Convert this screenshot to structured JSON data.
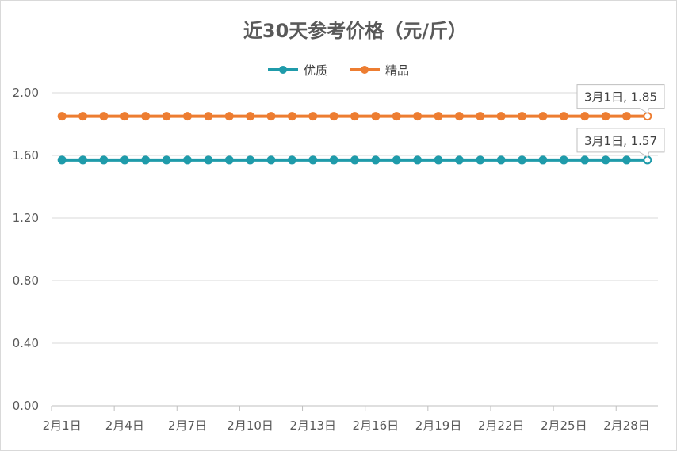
{
  "chart_data": {
    "type": "line",
    "title": "近30天参考价格（元/斤）",
    "xlabel": "",
    "ylabel": "",
    "ylim": [
      0,
      2
    ],
    "yticks": [
      "0.00",
      "0.40",
      "0.80",
      "1.20",
      "1.60",
      "2.00"
    ],
    "grid": true,
    "legend_position": "top",
    "categories": [
      "2月1日",
      "2月2日",
      "2月3日",
      "2月4日",
      "2月5日",
      "2月6日",
      "2月7日",
      "2月8日",
      "2月9日",
      "2月10日",
      "2月11日",
      "2月12日",
      "2月13日",
      "2月14日",
      "2月15日",
      "2月16日",
      "2月17日",
      "2月18日",
      "2月19日",
      "2月20日",
      "2月21日",
      "2月22日",
      "2月23日",
      "2月24日",
      "2月25日",
      "2月26日",
      "2月27日",
      "2月28日",
      "3月1日"
    ],
    "xtick_labels": [
      "2月1日",
      "2月4日",
      "2月7日",
      "2月10日",
      "2月13日",
      "2月16日",
      "2月19日",
      "2月22日",
      "2月25日",
      "2月28日"
    ],
    "series": [
      {
        "name": "优质",
        "color": "#1F9BAA",
        "values": [
          1.57,
          1.57,
          1.57,
          1.57,
          1.57,
          1.57,
          1.57,
          1.57,
          1.57,
          1.57,
          1.57,
          1.57,
          1.57,
          1.57,
          1.57,
          1.57,
          1.57,
          1.57,
          1.57,
          1.57,
          1.57,
          1.57,
          1.57,
          1.57,
          1.57,
          1.57,
          1.57,
          1.57,
          1.57
        ]
      },
      {
        "name": "精品",
        "color": "#ED7D31",
        "values": [
          1.85,
          1.85,
          1.85,
          1.85,
          1.85,
          1.85,
          1.85,
          1.85,
          1.85,
          1.85,
          1.85,
          1.85,
          1.85,
          1.85,
          1.85,
          1.85,
          1.85,
          1.85,
          1.85,
          1.85,
          1.85,
          1.85,
          1.85,
          1.85,
          1.85,
          1.85,
          1.85,
          1.85,
          1.85
        ]
      }
    ],
    "annotations": [
      {
        "text": "3月1日, 1.85"
      },
      {
        "text": "3月1日, 1.57"
      }
    ]
  }
}
